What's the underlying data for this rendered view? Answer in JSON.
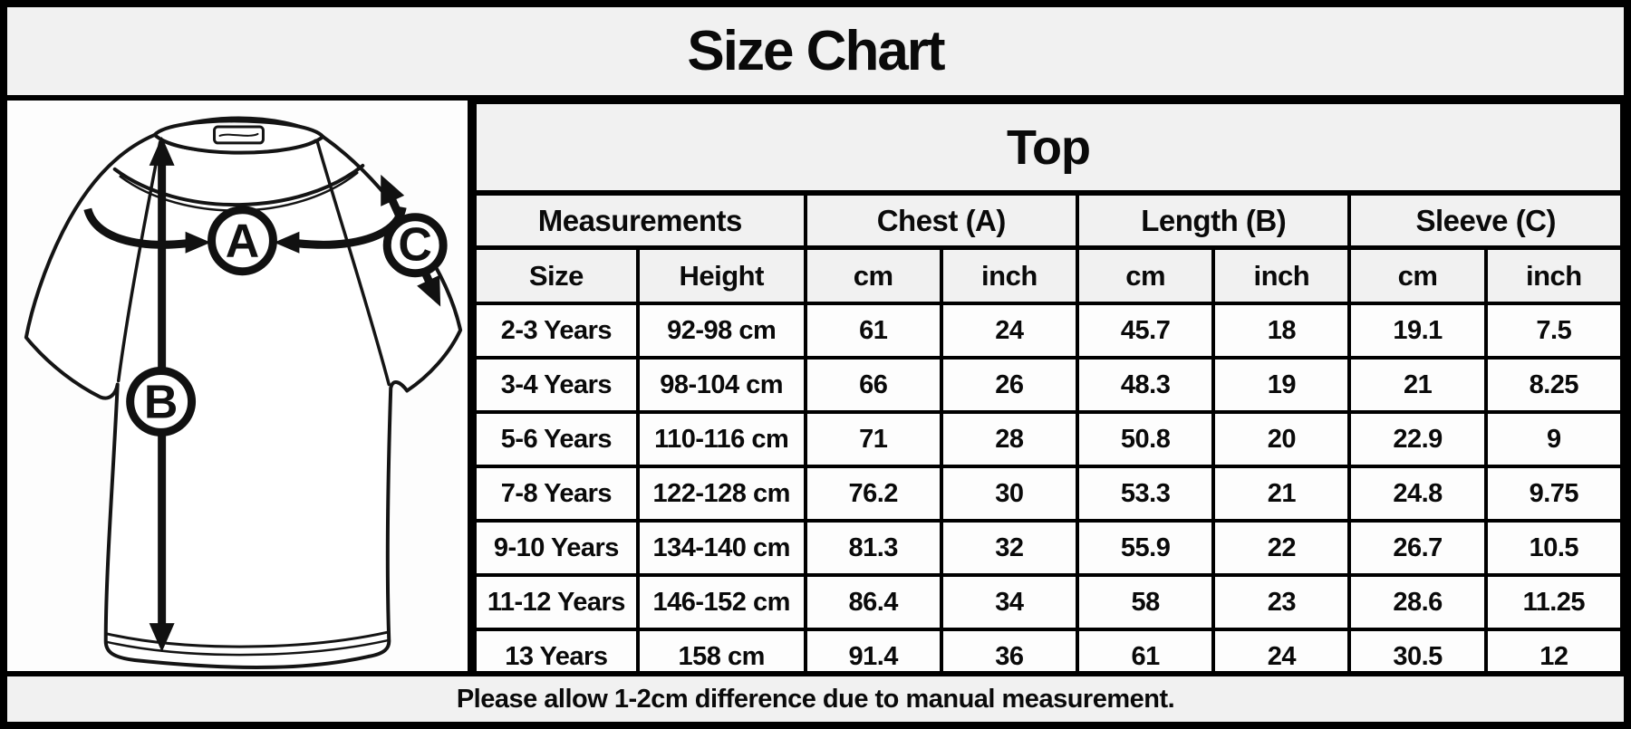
{
  "title": "Size Chart",
  "diagram": {
    "label_a": "A",
    "label_b": "B",
    "label_c": "C"
  },
  "table": {
    "title": "Top",
    "group_headers": [
      {
        "label": "Measurements",
        "span": 2
      },
      {
        "label": "Chest (A)",
        "span": 2
      },
      {
        "label": "Length (B)",
        "span": 2
      },
      {
        "label": "Sleeve (C)",
        "span": 2
      }
    ],
    "sub_headers": [
      "Size",
      "Height",
      "cm",
      "inch",
      "cm",
      "inch",
      "cm",
      "inch"
    ]
  },
  "chart_data": {
    "type": "table",
    "title": "Size Chart",
    "section": "Top",
    "columns": [
      "Size",
      "Height",
      "Chest (A) cm",
      "Chest (A) inch",
      "Length (B) cm",
      "Length (B) inch",
      "Sleeve (C) cm",
      "Sleeve (C) inch"
    ],
    "rows": [
      [
        "2-3 Years",
        "92-98 cm",
        "61",
        "24",
        "45.7",
        "18",
        "19.1",
        "7.5"
      ],
      [
        "3-4 Years",
        "98-104 cm",
        "66",
        "26",
        "48.3",
        "19",
        "21",
        "8.25"
      ],
      [
        "5-6 Years",
        "110-116 cm",
        "71",
        "28",
        "50.8",
        "20",
        "22.9",
        "9"
      ],
      [
        "7-8 Years",
        "122-128 cm",
        "76.2",
        "30",
        "53.3",
        "21",
        "24.8",
        "9.75"
      ],
      [
        "9-10 Years",
        "134-140 cm",
        "81.3",
        "32",
        "55.9",
        "22",
        "26.7",
        "10.5"
      ],
      [
        "11-12 Years",
        "146-152 cm",
        "86.4",
        "34",
        "58",
        "23",
        "28.6",
        "11.25"
      ],
      [
        "13 Years",
        "158 cm",
        "91.4",
        "36",
        "61",
        "24",
        "30.5",
        "12"
      ]
    ]
  },
  "footer": "Please allow 1-2cm difference due to manual measurement.",
  "colors": {
    "border": "#000000",
    "panel_gray": "#f1f1f1",
    "cell_white": "#fdfdfd",
    "ink": "#111111"
  }
}
